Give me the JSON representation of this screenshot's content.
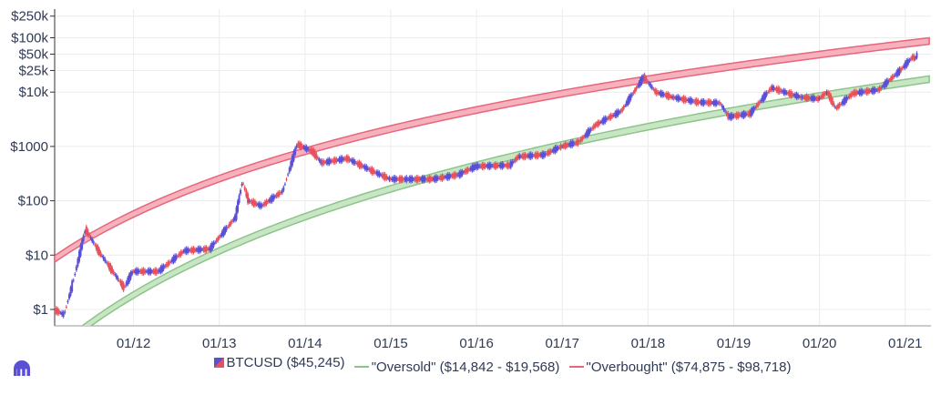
{
  "chart_data": {
    "type": "line",
    "title": "",
    "xlabel": "",
    "ylabel": "",
    "yscale": "log",
    "ylim": [
      0.5,
      250000
    ],
    "xlim": [
      2011.08,
      2021.3
    ],
    "grid": true,
    "legend_position": "bottom-center",
    "y_ticks": [
      {
        "v": 1,
        "label": "$1"
      },
      {
        "v": 10,
        "label": "$10"
      },
      {
        "v": 100,
        "label": "$100"
      },
      {
        "v": 1000,
        "label": "$1000"
      },
      {
        "v": 10000,
        "label": "$10k"
      },
      {
        "v": 25000,
        "label": "$25k"
      },
      {
        "v": 50000,
        "label": "$50k"
      },
      {
        "v": 100000,
        "label": "$100k"
      },
      {
        "v": 250000,
        "label": "$250k"
      }
    ],
    "x_ticks": [
      {
        "v": 2012,
        "label": "01/12"
      },
      {
        "v": 2013,
        "label": "01/13"
      },
      {
        "v": 2014,
        "label": "01/14"
      },
      {
        "v": 2015,
        "label": "01/15"
      },
      {
        "v": 2016,
        "label": "01/16"
      },
      {
        "v": 2017,
        "label": "01/17"
      },
      {
        "v": 2018,
        "label": "01/18"
      },
      {
        "v": 2019,
        "label": "01/19"
      },
      {
        "v": 2020,
        "label": "01/20"
      },
      {
        "v": 2021,
        "label": "01/21"
      }
    ],
    "series": [
      {
        "name": "BTCUSD",
        "legend": "BTCUSD ($45,245)",
        "color": "#5b4fd6",
        "down_color": "#e8505b",
        "type": "candlestick",
        "x": [
          2011.08,
          2011.2,
          2011.3,
          2011.45,
          2011.6,
          2011.9,
          2012.0,
          2012.3,
          2012.6,
          2012.9,
          2013.2,
          2013.28,
          2013.35,
          2013.5,
          2013.75,
          2013.92,
          2014.1,
          2014.2,
          2014.5,
          2014.8,
          2015.0,
          2015.2,
          2015.5,
          2015.8,
          2016.0,
          2016.4,
          2016.5,
          2016.8,
          2017.0,
          2017.2,
          2017.4,
          2017.7,
          2017.96,
          2018.1,
          2018.3,
          2018.6,
          2018.85,
          2018.95,
          2019.2,
          2019.45,
          2019.6,
          2019.8,
          2020.0,
          2020.1,
          2020.2,
          2020.4,
          2020.7,
          2020.95,
          2021.1,
          2021.12,
          2021.15
        ],
        "y": [
          1,
          0.8,
          3,
          30,
          12,
          2.5,
          5,
          5,
          12,
          13,
          50,
          230,
          100,
          80,
          150,
          1100,
          800,
          500,
          600,
          350,
          250,
          250,
          250,
          300,
          430,
          450,
          650,
          700,
          1000,
          1200,
          2500,
          4500,
          19000,
          10000,
          8000,
          6500,
          6300,
          3500,
          4000,
          12000,
          10000,
          8000,
          7500,
          10000,
          5000,
          9500,
          11000,
          25000,
          45000,
          40000,
          50000
        ]
      },
      {
        "name": "Oversold",
        "legend": "\"Oversold\" ($14,842 - $19,568)",
        "color": "#8cc48a",
        "fill": "#c9e6c4",
        "model": {
          "t0": 2009.0,
          "ref_t": 2021.25,
          "upper_ref": 19568,
          "lower_ref": 14842,
          "exponent": 6.49
        }
      },
      {
        "name": "Overbought",
        "legend": "\"Overbought\" ($74,875 - $98,718)",
        "color": "#e8667a",
        "fill": "#f7b1bd",
        "model": {
          "t0": 2009.0,
          "ref_t": 2021.25,
          "upper_ref": 98718,
          "lower_ref": 74875,
          "exponent": 5.2
        }
      }
    ]
  }
}
